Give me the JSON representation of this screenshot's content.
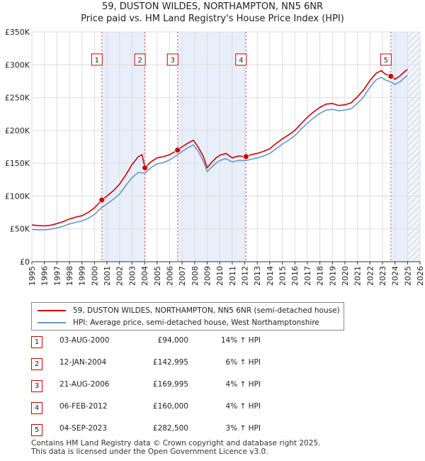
{
  "title_line1": "59, DUSTON WILDES, NORTHAMPTON, NN5 6NR",
  "title_line2": "Price paid vs. HM Land Registry's House Price Index (HPI)",
  "legend": {
    "property": "59, DUSTON WILDES, NORTHAMPTON, NN5 6NR (semi-detached house)",
    "hpi": "HPI: Average price, semi-detached house, West Northamptonshire"
  },
  "sales": [
    {
      "num": "1",
      "date": "03-AUG-2000",
      "price": "£94,000",
      "hpi": "14% ↑ HPI"
    },
    {
      "num": "2",
      "date": "12-JAN-2004",
      "price": "£142,995",
      "hpi": "6% ↑ HPI"
    },
    {
      "num": "3",
      "date": "21-AUG-2006",
      "price": "£169,995",
      "hpi": "4% ↑ HPI"
    },
    {
      "num": "4",
      "date": "06-FEB-2012",
      "price": "£160,000",
      "hpi": "4% ↑ HPI"
    },
    {
      "num": "5",
      "date": "04-SEP-2023",
      "price": "£282,500",
      "hpi": "3% ↑ HPI"
    }
  ],
  "footer_line1": "Contains HM Land Registry data © Crown copyright and database right 2025.",
  "footer_line2": "This data is licensed under the Open Government Licence v3.0.",
  "colors": {
    "property": "#cc0000",
    "hpi": "#6699cc",
    "shade": "#e8eefa",
    "future_hatch": "#c9d4e6",
    "grid": "#dddddd"
  },
  "chart_data": {
    "type": "line",
    "xlim": [
      1995,
      2026
    ],
    "ylim": [
      0,
      350000
    ],
    "x_ticks": [
      "1995",
      "1996",
      "1997",
      "1998",
      "1999",
      "2000",
      "2001",
      "2002",
      "2003",
      "2004",
      "2005",
      "2006",
      "2007",
      "2008",
      "2009",
      "2010",
      "2011",
      "2012",
      "2013",
      "2014",
      "2015",
      "2016",
      "2017",
      "2018",
      "2019",
      "2020",
      "2021",
      "2022",
      "2023",
      "2024",
      "2025",
      "2026"
    ],
    "y_ticks": [
      {
        "value": 0,
        "label": "£0"
      },
      {
        "value": 50000,
        "label": "£50K"
      },
      {
        "value": 100000,
        "label": "£100K"
      },
      {
        "value": 150000,
        "label": "£150K"
      },
      {
        "value": 200000,
        "label": "£200K"
      },
      {
        "value": 250000,
        "label": "£250K"
      },
      {
        "value": 300000,
        "label": "£300K"
      },
      {
        "value": 350000,
        "label": "£350K"
      }
    ],
    "shaded_ranges": [
      [
        2000.59,
        2004.03
      ],
      [
        2006.64,
        2012.1
      ],
      [
        2023.67,
        2025.0
      ]
    ],
    "future_from": 2025.0,
    "series": [
      {
        "name": "59, DUSTON WILDES, NORTHAMPTON, NN5 6NR (semi-detached house)",
        "x": [
          1995.0,
          1995.5,
          1996.0,
          1996.5,
          1997.0,
          1997.5,
          1998.0,
          1998.5,
          1999.0,
          1999.5,
          2000.0,
          2000.59,
          2001.0,
          2001.5,
          2002.0,
          2002.5,
          2003.0,
          2003.5,
          2003.8,
          2004.03,
          2004.5,
          2005.0,
          2005.5,
          2006.0,
          2006.64,
          2007.0,
          2007.5,
          2007.9,
          2008.3,
          2008.7,
          2009.0,
          2009.3,
          2009.7,
          2010.0,
          2010.5,
          2011.0,
          2011.5,
          2012.1,
          2012.5,
          2013.0,
          2013.5,
          2014.0,
          2014.5,
          2015.0,
          2015.5,
          2016.0,
          2016.5,
          2017.0,
          2017.5,
          2018.0,
          2018.5,
          2019.0,
          2019.5,
          2020.0,
          2020.5,
          2021.0,
          2021.5,
          2022.0,
          2022.5,
          2022.9,
          2023.2,
          2023.67,
          2024.0,
          2024.4,
          2024.8,
          2025.0
        ],
        "y": [
          56000,
          55000,
          54500,
          55500,
          58000,
          61000,
          65000,
          68000,
          70000,
          75000,
          82000,
          94000,
          100000,
          108000,
          118000,
          132000,
          148000,
          160000,
          163000,
          142995,
          152000,
          158000,
          160000,
          163000,
          169995,
          175000,
          181000,
          185000,
          174000,
          160000,
          143000,
          150000,
          158000,
          162000,
          165000,
          158000,
          161000,
          160000,
          163000,
          165000,
          168000,
          172000,
          180000,
          187000,
          193000,
          200000,
          210000,
          220000,
          228000,
          235000,
          240000,
          241000,
          238000,
          239000,
          242000,
          251000,
          262000,
          276000,
          287000,
          291000,
          286000,
          282500,
          278000,
          283000,
          290000,
          293000
        ]
      },
      {
        "name": "HPI: Average price, semi-detached house, West Northamptonshire",
        "x": [
          1995.0,
          1995.5,
          1996.0,
          1996.5,
          1997.0,
          1997.5,
          1998.0,
          1998.5,
          1999.0,
          1999.5,
          2000.0,
          2000.59,
          2001.0,
          2001.5,
          2002.0,
          2002.5,
          2003.0,
          2003.5,
          2004.03,
          2004.5,
          2005.0,
          2005.5,
          2006.0,
          2006.64,
          2007.0,
          2007.5,
          2007.9,
          2008.3,
          2008.7,
          2009.0,
          2009.3,
          2009.7,
          2010.0,
          2010.5,
          2011.0,
          2011.5,
          2012.1,
          2012.5,
          2013.0,
          2013.5,
          2014.0,
          2014.5,
          2015.0,
          2015.5,
          2016.0,
          2016.5,
          2017.0,
          2017.5,
          2018.0,
          2018.5,
          2019.0,
          2019.5,
          2020.0,
          2020.5,
          2021.0,
          2021.5,
          2022.0,
          2022.5,
          2022.9,
          2023.2,
          2023.67,
          2024.0,
          2024.4,
          2024.8,
          2025.0
        ],
        "y": [
          49000,
          48500,
          48500,
          49500,
          51500,
          54000,
          57500,
          60000,
          62000,
          66000,
          72000,
          82500,
          88000,
          95000,
          103000,
          116000,
          128000,
          136000,
          135000,
          143000,
          149000,
          151000,
          155000,
          163000,
          168000,
          174000,
          178000,
          168000,
          153000,
          137000,
          143000,
          150000,
          154000,
          157000,
          152000,
          154000,
          154000,
          156000,
          158000,
          161000,
          165000,
          172000,
          179000,
          185000,
          192000,
          202000,
          211000,
          219000,
          226000,
          231000,
          232000,
          230000,
          231000,
          233000,
          241000,
          251000,
          266000,
          277000,
          281000,
          277000,
          274000,
          270000,
          274000,
          281000,
          284000
        ]
      }
    ],
    "sale_points": [
      {
        "num": "1",
        "x": 2000.59,
        "y": 94000
      },
      {
        "num": "2",
        "x": 2004.03,
        "y": 142995
      },
      {
        "num": "3",
        "x": 2006.64,
        "y": 169995
      },
      {
        "num": "4",
        "x": 2012.1,
        "y": 160000
      },
      {
        "num": "5",
        "x": 2023.67,
        "y": 282500
      }
    ]
  }
}
